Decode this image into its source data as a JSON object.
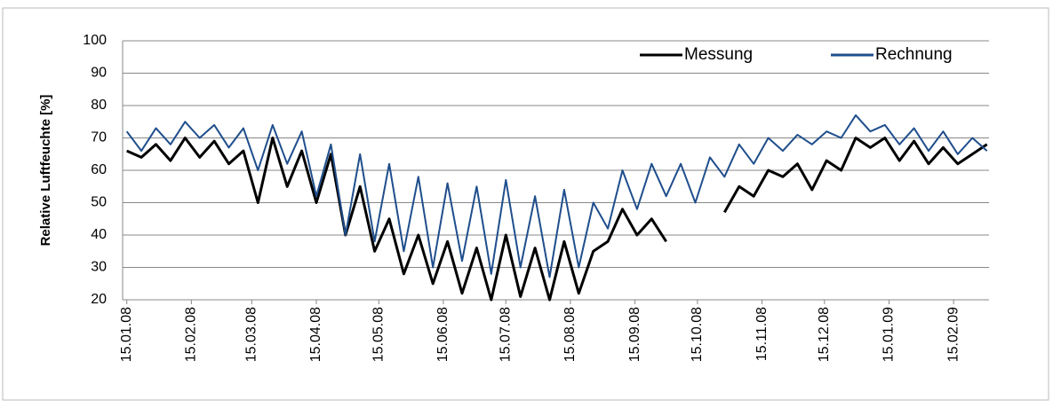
{
  "chart_data": {
    "type": "line",
    "y_label": "Relative Luftfeuchte [%]",
    "x": [
      "15.01.08",
      "22.01.08",
      "29.01.08",
      "05.02.08",
      "12.02.08",
      "19.02.08",
      "26.02.08",
      "04.03.08",
      "11.03.08",
      "18.03.08",
      "25.03.08",
      "01.04.08",
      "08.04.08",
      "15.04.08",
      "22.04.08",
      "29.04.08",
      "06.05.08",
      "13.05.08",
      "20.05.08",
      "27.05.08",
      "03.06.08",
      "10.06.08",
      "17.06.08",
      "24.06.08",
      "01.07.08",
      "08.07.08",
      "15.07.08",
      "22.07.08",
      "29.07.08",
      "05.08.08",
      "12.08.08",
      "19.08.08",
      "26.08.08",
      "02.09.08",
      "09.09.08",
      "16.09.08",
      "23.09.08",
      "30.09.08",
      "07.10.08",
      "14.10.08",
      "21.10.08",
      "28.10.08",
      "04.11.08",
      "11.11.08",
      "18.11.08",
      "25.11.08",
      "02.12.08",
      "09.12.08",
      "16.12.08",
      "23.12.08",
      "30.12.08",
      "06.01.09",
      "13.01.09",
      "20.01.09",
      "27.01.09",
      "03.02.09",
      "10.02.09",
      "17.02.09",
      "24.02.09",
      "03.03.09"
    ],
    "series": [
      {
        "name": "Messung",
        "color": "#000000",
        "values": [
          66,
          64,
          68,
          63,
          70,
          64,
          69,
          62,
          66,
          50,
          70,
          55,
          66,
          50,
          65,
          40,
          55,
          35,
          45,
          28,
          40,
          25,
          38,
          22,
          36,
          20,
          40,
          21,
          36,
          20,
          38,
          22,
          35,
          38,
          48,
          40,
          45,
          38,
          null,
          null,
          null,
          47,
          55,
          52,
          60,
          58,
          62,
          54,
          63,
          60,
          70,
          67,
          70,
          63,
          69,
          62,
          67,
          62,
          65,
          68
        ]
      },
      {
        "name": "Rechnung",
        "color": "#1f4e8c",
        "values": [
          72,
          66,
          73,
          68,
          75,
          70,
          74,
          67,
          73,
          60,
          74,
          62,
          72,
          52,
          68,
          40,
          65,
          38,
          62,
          35,
          58,
          30,
          56,
          32,
          55,
          28,
          57,
          30,
          52,
          27,
          54,
          30,
          50,
          42,
          60,
          48,
          62,
          52,
          62,
          50,
          64,
          58,
          68,
          62,
          70,
          66,
          71,
          68,
          72,
          70,
          77,
          72,
          74,
          68,
          73,
          66,
          72,
          65,
          70,
          66
        ]
      }
    ],
    "xlim": [
      "13.01.08",
      "04.03.09"
    ],
    "xticks": [
      "15.01.08",
      "15.02.08",
      "15.03.08",
      "15.04.08",
      "15.05.08",
      "15.06.08",
      "15.07.08",
      "15.08.08",
      "15.09.08",
      "15.10.08",
      "15.11.08",
      "15.12.08",
      "15.01.09",
      "15.02.09"
    ],
    "ylim": [
      20,
      100
    ],
    "yticks": [
      20,
      30,
      40,
      50,
      60,
      70,
      80,
      90,
      100
    ],
    "grid": true,
    "legend": "upper right"
  }
}
